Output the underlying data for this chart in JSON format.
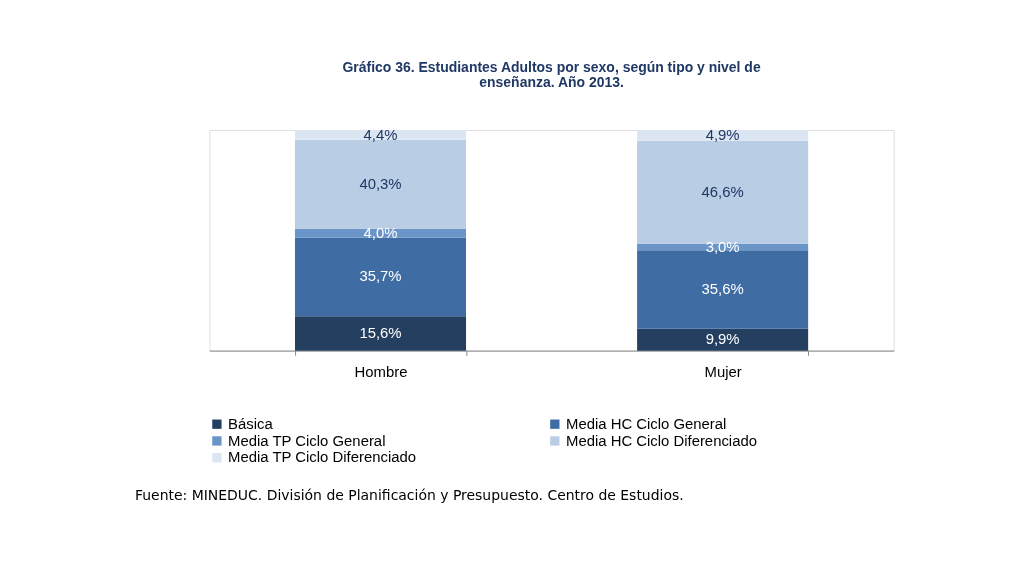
{
  "chart_data": {
    "type": "bar",
    "stacked": true,
    "title": "Gráfico 36. Estudiantes Adultos por sexo, según tipo y nivel de enseñanza. Año 2013.",
    "categories": [
      "Hombre",
      "Mujer"
    ],
    "series": [
      {
        "name": "Básica",
        "color": "#243f60",
        "values": [
          15.6,
          9.9
        ],
        "value_labels": [
          "15,6%",
          "9,9%"
        ]
      },
      {
        "name": "Media HC Ciclo General",
        "color": "#3f6ca3",
        "values": [
          35.7,
          35.6
        ],
        "value_labels": [
          "35,7%",
          "35,6%"
        ]
      },
      {
        "name": "Media TP Ciclo General",
        "color": "#6a95c8",
        "values": [
          4.0,
          3.0
        ],
        "value_labels": [
          "4,0%",
          "3,0%"
        ]
      },
      {
        "name": "Media HC Ciclo Diferenciado",
        "color": "#b9cde5",
        "values": [
          40.3,
          46.6
        ],
        "value_labels": [
          "40,3%",
          "46,6%"
        ]
      },
      {
        "name": "Media TP Ciclo Diferenciado",
        "color": "#dce6f2",
        "values": [
          4.4,
          4.9
        ],
        "value_labels": [
          "4,4%",
          "4,9%"
        ]
      }
    ],
    "legend": "bottom",
    "grid": false,
    "annotations": [
      "Fuente: MINEDUC. División de Planificación y Presupuesto. Centro de Estudios."
    ]
  }
}
